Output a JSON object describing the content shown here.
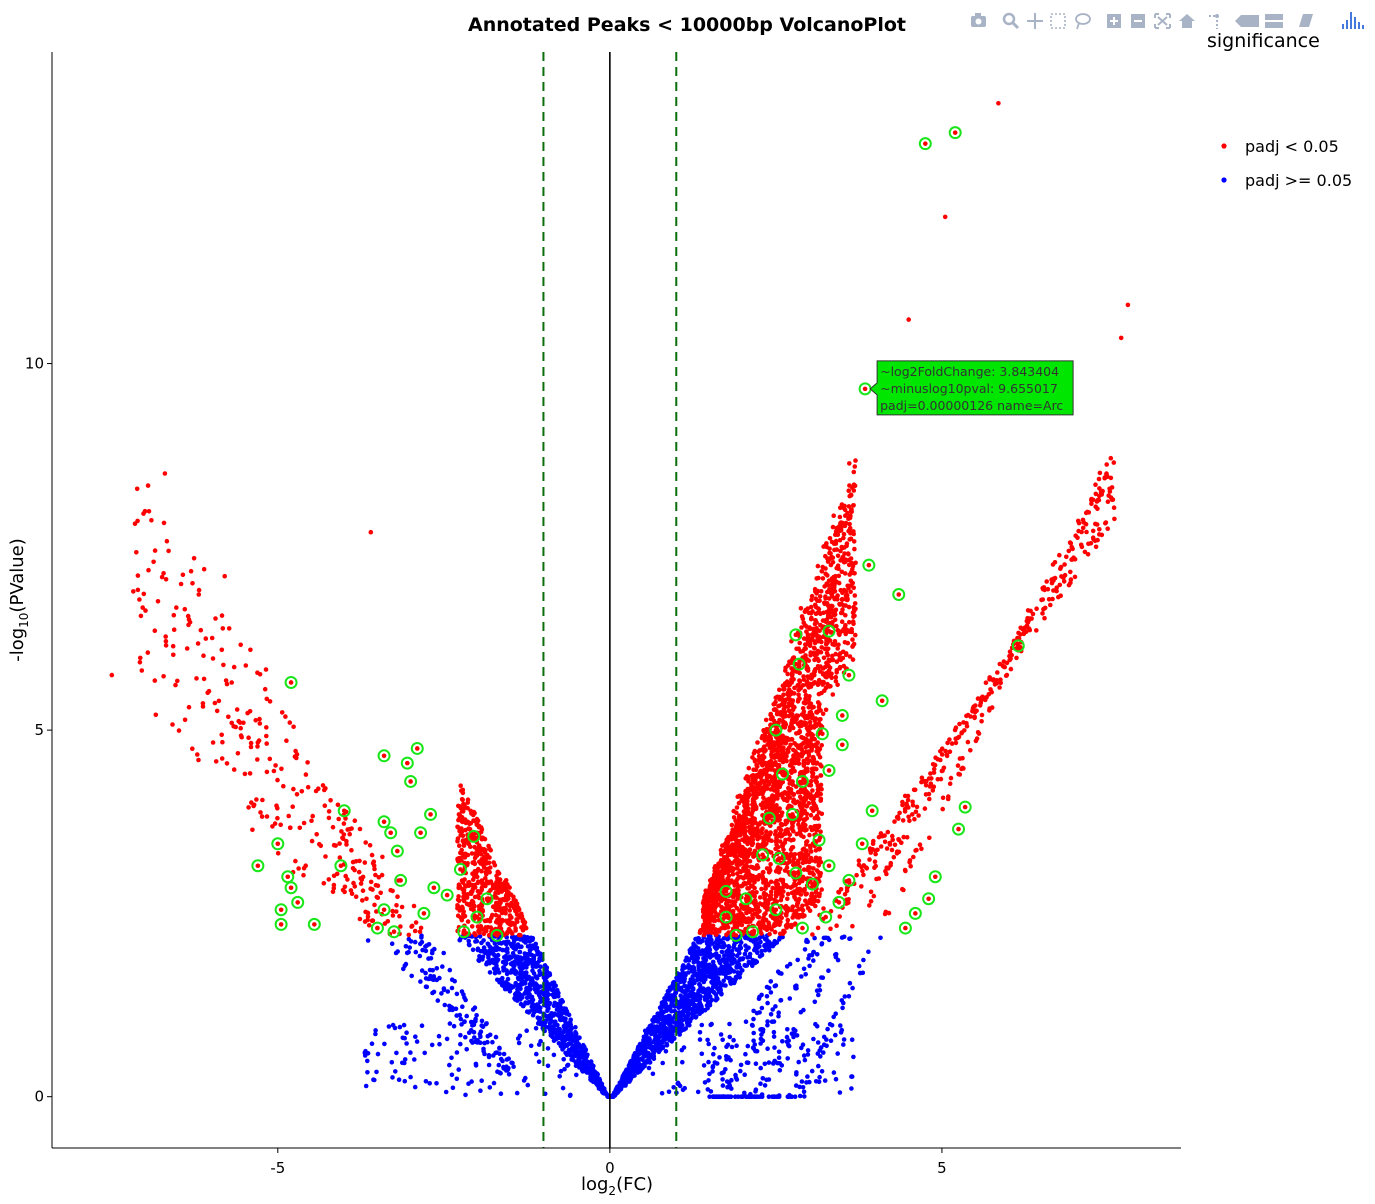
{
  "chart_data": {
    "type": "scatter",
    "title": "Annotated Peaks < 10000bp VolcanoPlot",
    "xlabel": "log",
    "xlabel_sub": "2",
    "xlabel_suffix": "(FC)",
    "ylabel": "-log",
    "ylabel_sub": "10",
    "ylabel_suffix": "(PValue)",
    "xlim": [
      -8.4,
      8.6
    ],
    "ylim": [
      -0.7,
      14.25
    ],
    "x_ticks": [
      -5,
      0,
      5
    ],
    "x_tick_labels": [
      "-5",
      "0",
      "5"
    ],
    "y_ticks": [
      0,
      5,
      10
    ],
    "y_tick_labels": [
      "0",
      "5",
      "10"
    ],
    "grid": false,
    "vlines": [
      {
        "x": 0,
        "style": "solid",
        "color": "#000000"
      },
      {
        "x": -1,
        "style": "dashed",
        "color": "#0a6e0a"
      },
      {
        "x": 1,
        "style": "dashed",
        "color": "#0a6e0a"
      }
    ],
    "legend": {
      "title": "significance",
      "position": "top-right",
      "entries": [
        {
          "label": "padj < 0.05",
          "color": "#ff0000"
        },
        {
          "label": "padj >= 0.05",
          "color": "#0000ff"
        }
      ]
    },
    "series": [
      {
        "name": "padj < 0.05",
        "color": "#ff0000",
        "threshold_y": 2.2
      },
      {
        "name": "padj >= 0.05",
        "color": "#0000ff"
      }
    ],
    "highlighted_points": [
      {
        "x": 4.75,
        "y": 13.0
      },
      {
        "x": 5.2,
        "y": 13.15
      },
      {
        "x": 3.843404,
        "y": 9.655017
      },
      {
        "x": 3.9,
        "y": 7.25
      },
      {
        "x": 4.35,
        "y": 6.85
      },
      {
        "x": 6.15,
        "y": 6.15
      },
      {
        "x": 2.8,
        "y": 6.3
      },
      {
        "x": 3.3,
        "y": 6.35
      },
      {
        "x": 2.85,
        "y": 5.9
      },
      {
        "x": 3.6,
        "y": 5.75
      },
      {
        "x": 4.1,
        "y": 5.4
      },
      {
        "x": 3.5,
        "y": 5.2
      },
      {
        "x": 2.5,
        "y": 5.0
      },
      {
        "x": 3.2,
        "y": 4.95
      },
      {
        "x": 3.5,
        "y": 4.8
      },
      {
        "x": 3.3,
        "y": 4.45
      },
      {
        "x": 2.6,
        "y": 4.4
      },
      {
        "x": 2.9,
        "y": 4.3
      },
      {
        "x": 3.95,
        "y": 3.9
      },
      {
        "x": 2.4,
        "y": 3.8
      },
      {
        "x": 2.75,
        "y": 3.85
      },
      {
        "x": 5.35,
        "y": 3.95
      },
      {
        "x": 5.25,
        "y": 3.65
      },
      {
        "x": 3.15,
        "y": 3.5
      },
      {
        "x": 3.8,
        "y": 3.45
      },
      {
        "x": 2.3,
        "y": 3.3
      },
      {
        "x": 2.55,
        "y": 3.25
      },
      {
        "x": 3.3,
        "y": 3.15
      },
      {
        "x": 2.8,
        "y": 3.05
      },
      {
        "x": 4.9,
        "y": 3.0
      },
      {
        "x": 3.6,
        "y": 2.95
      },
      {
        "x": 3.05,
        "y": 2.9
      },
      {
        "x": 1.75,
        "y": 2.8
      },
      {
        "x": 2.05,
        "y": 2.7
      },
      {
        "x": 3.45,
        "y": 2.65
      },
      {
        "x": 4.8,
        "y": 2.7
      },
      {
        "x": 2.5,
        "y": 2.55
      },
      {
        "x": 1.75,
        "y": 2.45
      },
      {
        "x": 3.25,
        "y": 2.45
      },
      {
        "x": 4.6,
        "y": 2.5
      },
      {
        "x": 2.9,
        "y": 2.3
      },
      {
        "x": 4.45,
        "y": 2.3
      },
      {
        "x": 1.9,
        "y": 2.2
      },
      {
        "x": 2.15,
        "y": 2.25
      },
      {
        "x": -4.8,
        "y": 5.65
      },
      {
        "x": -4.0,
        "y": 3.9
      },
      {
        "x": -3.4,
        "y": 4.65
      },
      {
        "x": -2.9,
        "y": 4.75
      },
      {
        "x": -3.05,
        "y": 4.55
      },
      {
        "x": -3.0,
        "y": 4.3
      },
      {
        "x": -3.4,
        "y": 3.75
      },
      {
        "x": -3.3,
        "y": 3.6
      },
      {
        "x": -2.7,
        "y": 3.85
      },
      {
        "x": -2.05,
        "y": 3.55
      },
      {
        "x": -2.85,
        "y": 3.6
      },
      {
        "x": -3.2,
        "y": 3.35
      },
      {
        "x": -5.0,
        "y": 3.45
      },
      {
        "x": -5.3,
        "y": 3.15
      },
      {
        "x": -4.05,
        "y": 3.15
      },
      {
        "x": -2.25,
        "y": 3.1
      },
      {
        "x": -4.85,
        "y": 3.0
      },
      {
        "x": -3.15,
        "y": 2.95
      },
      {
        "x": -4.8,
        "y": 2.85
      },
      {
        "x": -2.65,
        "y": 2.85
      },
      {
        "x": -4.7,
        "y": 2.65
      },
      {
        "x": -2.45,
        "y": 2.75
      },
      {
        "x": -1.85,
        "y": 2.7
      },
      {
        "x": -4.95,
        "y": 2.55
      },
      {
        "x": -3.4,
        "y": 2.55
      },
      {
        "x": -2.8,
        "y": 2.5
      },
      {
        "x": -2.0,
        "y": 2.45
      },
      {
        "x": -4.95,
        "y": 2.35
      },
      {
        "x": -4.45,
        "y": 2.35
      },
      {
        "x": -3.5,
        "y": 2.3
      },
      {
        "x": -3.25,
        "y": 2.25
      },
      {
        "x": -2.2,
        "y": 2.25
      },
      {
        "x": -1.7,
        "y": 2.2
      }
    ],
    "tooltip": {
      "x": 3.843404,
      "y": 9.655017,
      "lines": [
        "~log2FoldChange: 3.843404",
        "~minuslog10pval: 9.655017",
        "padj=0.00000126 name=Arc"
      ]
    }
  },
  "modebar": {
    "buttons": [
      "camera-icon",
      "zoom-icon",
      "pan-icon",
      "box-select-icon",
      "lasso-icon",
      "zoom-in-icon",
      "zoom-out-icon",
      "autoscale-icon",
      "home-icon",
      "spike-lines-icon",
      "hover-closest-icon",
      "hover-compare-icon",
      "toggle-hover-icon",
      "plotly-logo-icon"
    ]
  }
}
